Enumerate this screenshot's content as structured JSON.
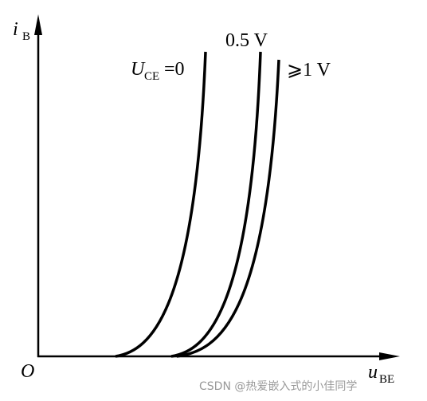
{
  "axes": {
    "y_label": {
      "symbol": "i",
      "subscript": "B"
    },
    "x_label": {
      "symbol": "u",
      "subscript": "BE"
    },
    "origin": "O"
  },
  "curves": [
    {
      "symbol": "U",
      "subscript": "CE",
      "suffix": "=0"
    },
    {
      "text": "0.5 V"
    },
    {
      "text": "⩾1 V"
    }
  ],
  "watermark": "CSDN @热爱嵌入式的小佳同学"
}
